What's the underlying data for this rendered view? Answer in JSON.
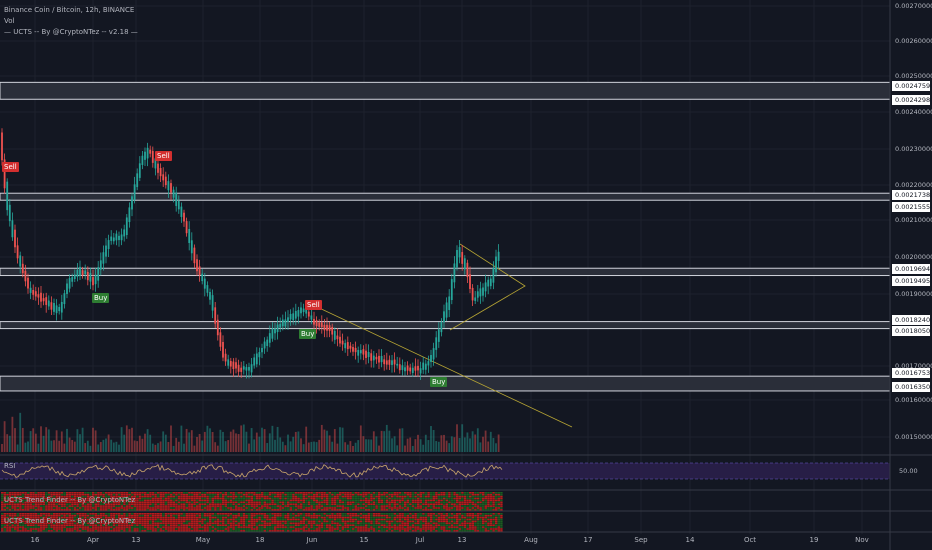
{
  "header": {
    "symbol_line": "Binance Coin / Bitcoin, 12h, BINANCE",
    "vol_label": "Vol",
    "indicator_line": "— UCTS -- By @CryptoNTez -- v2.18 —"
  },
  "signals": [
    {
      "label": "Sell",
      "kind": "sell"
    },
    {
      "label": "Buy",
      "kind": "buy"
    },
    {
      "label": "Sell",
      "kind": "sell"
    },
    {
      "label": "Sell",
      "kind": "sell"
    },
    {
      "label": "Buy",
      "kind": "buy"
    },
    {
      "label": "Buy",
      "kind": "buy"
    }
  ],
  "price_axis": {
    "labels": [
      "0.00270000",
      "0.00260000",
      "0.00250000",
      "0.00240000",
      "0.00230000",
      "0.00220000",
      "0.00210000",
      "0.00200000",
      "0.00190000",
      "0.00170000",
      "0.00160000",
      "0.00150000"
    ],
    "boxes": [
      "0.00247590",
      "0.00242980",
      "0.00217380",
      "0.00215550",
      "0.00196940",
      "0.00194950",
      "0.00182400",
      "0.00180500",
      "0.00167530",
      "0.00163500"
    ]
  },
  "zones": [
    {
      "top": 0.0024759,
      "bottom": 0.0024298
    },
    {
      "top": 0.0021738,
      "bottom": 0.0021555
    },
    {
      "top": 0.0019694,
      "bottom": 0.0019495
    },
    {
      "top": 0.001824,
      "bottom": 0.001805
    },
    {
      "top": 0.0016753,
      "bottom": 0.001635
    }
  ],
  "panes": {
    "rsi_label": "RSI",
    "rsi_level": "50.00",
    "trend1_label": "UCTS Trend Finder -- By @CryptoNTez",
    "trend2_label": "UCTS Trend Finder -- By @CryptoNTez"
  },
  "time_axis": [
    "16",
    "Apr",
    "13",
    "May",
    "18",
    "Jun",
    "15",
    "Jul",
    "13",
    "Aug",
    "17",
    "Sep",
    "14",
    "Oct",
    "19",
    "Nov"
  ],
  "colors": {
    "background": "#131722",
    "up": "#26a69a",
    "down": "#ef5350",
    "zone": "#d1d4dc",
    "trendline": "#b7a534",
    "rsi_line": "#c9a66b",
    "rsi_band": "#2a1f4a"
  }
}
